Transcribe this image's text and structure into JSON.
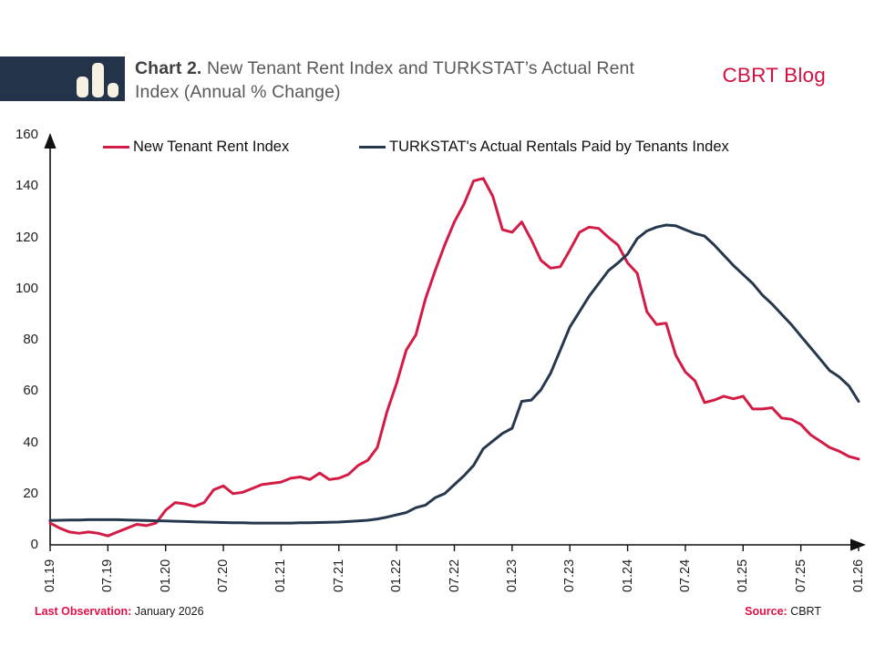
{
  "header": {
    "title_prefix": "Chart 2.",
    "title_line1": "New Tenant Rent Index and TURKSTAT’s Actual Rent",
    "title_line2": "Index (Annual % Change)",
    "brand": "CBRT Blog"
  },
  "legend": [
    {
      "label": "New Tenant Rent Index",
      "color": "#d21c46"
    },
    {
      "label": "TURKSTAT's Actual Rentals Paid by Tenants Index",
      "color": "#27384d"
    }
  ],
  "footer": {
    "last_observation_label": "Last Observation:",
    "last_observation_value": "January 2026",
    "source_label": "Source:",
    "source_value": "CBRT"
  },
  "colors": {
    "header_box": "#22334a",
    "logo_bars": "#f6f1e2",
    "brand_red": "#d11243",
    "footer_red": "#e01048",
    "axis": "#111111",
    "new_tenant_line": "#d21c46",
    "turkstat_line": "#27384d"
  },
  "chart_data": {
    "type": "line",
    "title": "Chart 2. New Tenant Rent Index and TURKSTAT’s Actual Rent Index (Annual % Change)",
    "xlabel": "",
    "ylabel": "",
    "ylim": [
      0,
      160
    ],
    "grid": false,
    "legend_position": "top",
    "x_frequency": "monthly",
    "x_start": "01.19",
    "x_end": "01.26",
    "x_tick_labels": [
      "01.19",
      "07.19",
      "01.20",
      "07.20",
      "01.21",
      "07.21",
      "01.22",
      "07.22",
      "01.23",
      "07.23",
      "01.24",
      "07.24",
      "01.25",
      "07.25",
      "01.26"
    ],
    "y_tick_labels": [
      "0",
      "20",
      "40",
      "60",
      "80",
      "100",
      "120",
      "140",
      "160"
    ],
    "y_tick_values": [
      0,
      20,
      40,
      60,
      80,
      100,
      120,
      140,
      160
    ],
    "series": [
      {
        "name": "New Tenant Rent Index",
        "color": "#d21c46",
        "data_name": "new-tenant-rent-index-line",
        "values": [
          8.5,
          6.5,
          5,
          4.5,
          5,
          4.5,
          3.5,
          5,
          6.5,
          8,
          7.5,
          8.5,
          13.5,
          16.5,
          16,
          15,
          16.5,
          21.5,
          23,
          20,
          20.5,
          22,
          23.5,
          24,
          24.5,
          26,
          26.5,
          25.5,
          28,
          25.5,
          26,
          27.5,
          31,
          33,
          38,
          52,
          63,
          76,
          82,
          96,
          107,
          117,
          126,
          133,
          142,
          143,
          136,
          123,
          122,
          126,
          119,
          111,
          108,
          108.5,
          115,
          122,
          124,
          123.5,
          120,
          117,
          110,
          106,
          91,
          86,
          86.5,
          74,
          67.5,
          64,
          55.5,
          56.5,
          58,
          57,
          58,
          53,
          53,
          53.5,
          49.5,
          49,
          47,
          43,
          40.5,
          38,
          36.5,
          34.5,
          33.5
        ]
      },
      {
        "name": "TURKSTAT's Actual Rentals Paid by Tenants Index",
        "color": "#27384d",
        "data_name": "turkstat-actual-rentals-line",
        "values": [
          9.5,
          9.6,
          9.7,
          9.7,
          9.8,
          9.8,
          9.8,
          9.8,
          9.7,
          9.6,
          9.5,
          9.4,
          9.3,
          9.2,
          9.1,
          9,
          8.9,
          8.8,
          8.7,
          8.6,
          8.6,
          8.5,
          8.5,
          8.5,
          8.5,
          8.5,
          8.6,
          8.6,
          8.7,
          8.8,
          8.9,
          9.1,
          9.3,
          9.6,
          10.1,
          10.8,
          11.7,
          12.6,
          14.5,
          15.5,
          18.4,
          20,
          23.5,
          27,
          31,
          37.5,
          40.5,
          43.5,
          45.5,
          56,
          56.5,
          60.5,
          67,
          76,
          85,
          91,
          97,
          102,
          107,
          110,
          113.5,
          119.5,
          122.5,
          124,
          124.8,
          124.5,
          123,
          121.5,
          120.5,
          117,
          113,
          109,
          105.5,
          102,
          97.5,
          94,
          90,
          86,
          81.5,
          77,
          72.5,
          68,
          65.5,
          62,
          56
        ]
      }
    ]
  }
}
